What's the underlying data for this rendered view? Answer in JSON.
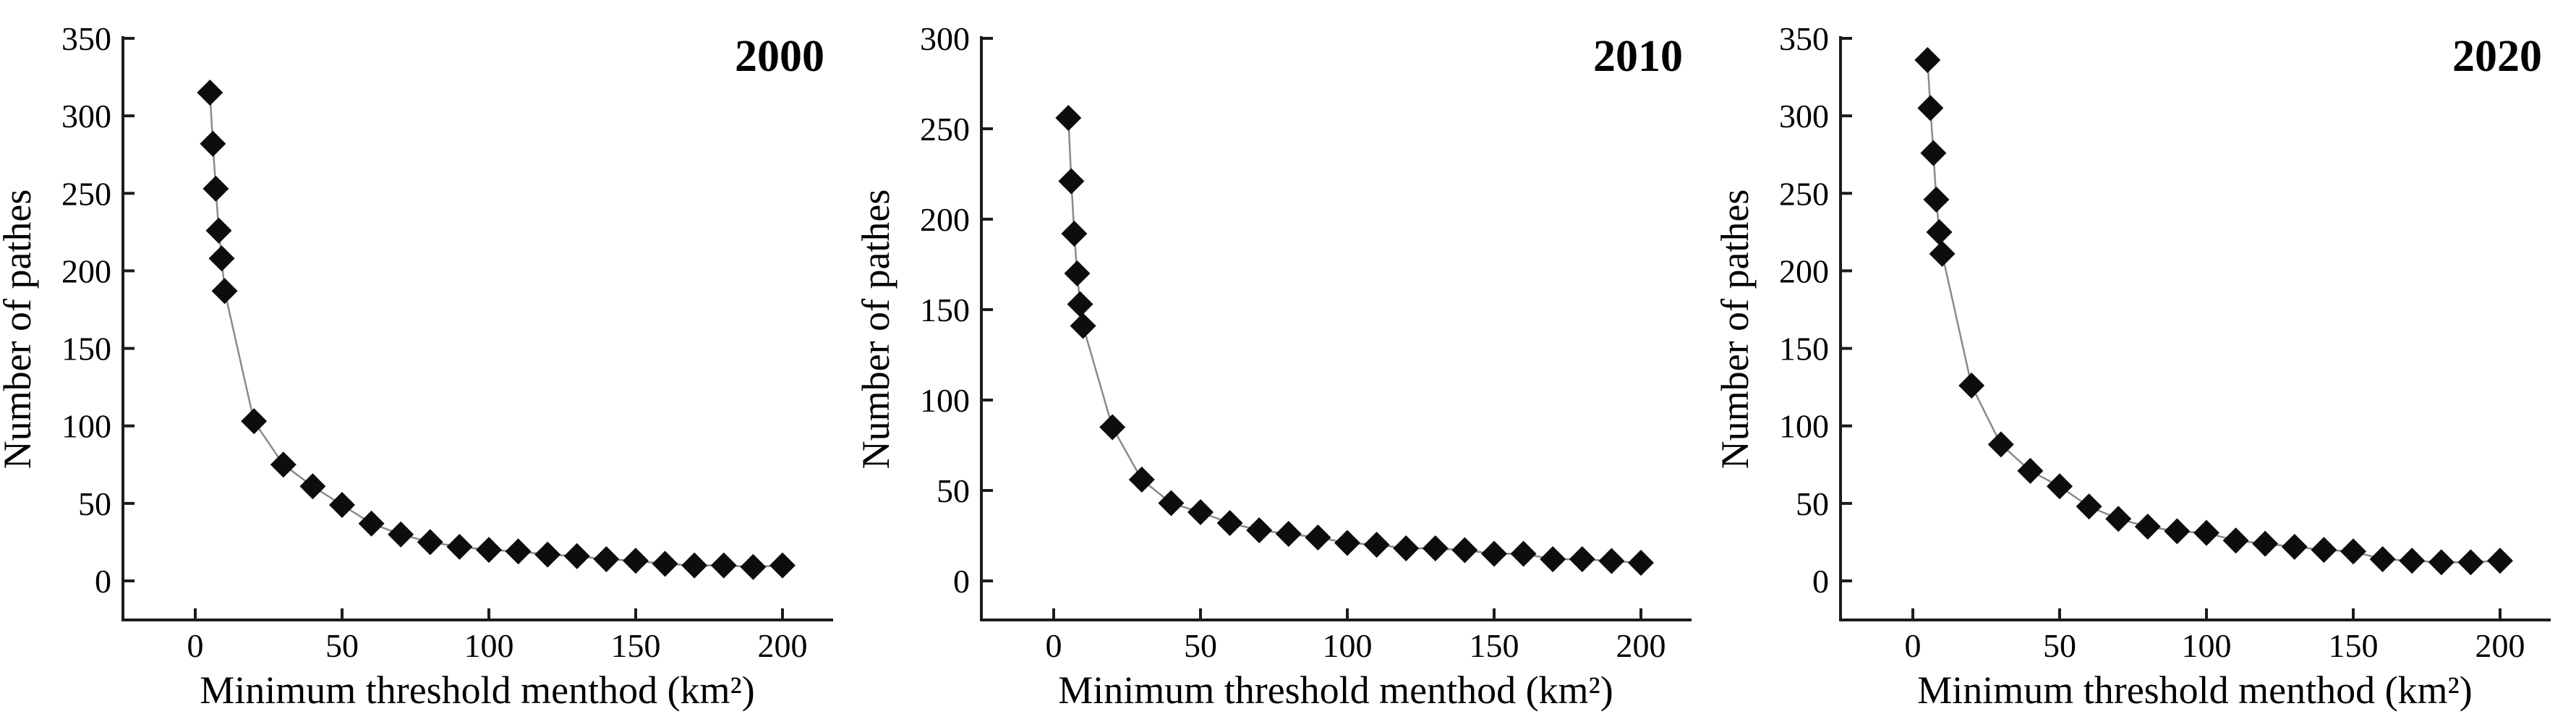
{
  "figure": {
    "ylabel": "Number of pathes",
    "xlabel": "Minimum threshold menthod (km²)",
    "colors": {
      "marker": "#0d0d0d",
      "line": "#8a8a8a",
      "axis": "#1c1c1c",
      "text": "#000000",
      "background": "#ffffff"
    }
  },
  "chart_data": [
    {
      "type": "scatter",
      "title": "2000",
      "xlabel": "Minimum threshold menthod (km²)",
      "ylabel": "Number of pathes",
      "x": [
        5,
        6,
        7,
        8,
        9,
        10,
        20,
        30,
        40,
        50,
        60,
        70,
        80,
        90,
        100,
        110,
        120,
        130,
        140,
        150,
        160,
        170,
        180,
        190,
        200
      ],
      "y": [
        315,
        282,
        253,
        226,
        208,
        187,
        103,
        75,
        61,
        49,
        37,
        30,
        25,
        22,
        20,
        19,
        17,
        16,
        14,
        13,
        11,
        10,
        10,
        9,
        10
      ],
      "xlim": [
        0,
        200
      ],
      "ylim": [
        0,
        350
      ],
      "xticks": [
        0,
        50,
        100,
        150,
        200
      ],
      "yticks": [
        0,
        50,
        100,
        150,
        200,
        250,
        300,
        350
      ],
      "marker": "diamond",
      "connected": true,
      "grid": false,
      "legend": "none"
    },
    {
      "type": "scatter",
      "title": "2010",
      "xlabel": "Minimum threshold menthod (km²)",
      "ylabel": "Number of pathes",
      "x": [
        5,
        6,
        7,
        8,
        9,
        10,
        20,
        30,
        40,
        50,
        60,
        70,
        80,
        90,
        100,
        110,
        120,
        130,
        140,
        150,
        160,
        170,
        180,
        190,
        200
      ],
      "y": [
        256,
        221,
        192,
        170,
        153,
        141,
        85,
        56,
        43,
        38,
        32,
        28,
        26,
        24,
        21,
        20,
        18,
        18,
        17,
        15,
        15,
        12,
        12,
        11,
        10
      ],
      "xlim": [
        0,
        200
      ],
      "ylim": [
        0,
        300
      ],
      "xticks": [
        0,
        50,
        100,
        150,
        200
      ],
      "yticks": [
        0,
        50,
        100,
        150,
        200,
        250,
        300
      ],
      "marker": "diamond",
      "connected": true,
      "grid": false,
      "legend": "none"
    },
    {
      "type": "scatter",
      "title": "2020",
      "xlabel": "Minimum threshold menthod (km²)",
      "ylabel": "Number of pathes",
      "x": [
        5,
        6,
        7,
        8,
        9,
        10,
        20,
        30,
        40,
        50,
        60,
        70,
        80,
        90,
        100,
        110,
        120,
        130,
        140,
        150,
        160,
        170,
        180,
        190,
        200
      ],
      "y": [
        336,
        305,
        276,
        246,
        225,
        211,
        126,
        88,
        71,
        61,
        48,
        40,
        35,
        32,
        31,
        26,
        24,
        22,
        20,
        19,
        14,
        13,
        12,
        12,
        13
      ],
      "xlim": [
        0,
        200
      ],
      "ylim": [
        0,
        350
      ],
      "xticks": [
        0,
        50,
        100,
        150,
        200
      ],
      "yticks": [
        0,
        50,
        100,
        150,
        200,
        250,
        300,
        350
      ],
      "marker": "diamond",
      "connected": true,
      "grid": false,
      "legend": "none"
    }
  ]
}
